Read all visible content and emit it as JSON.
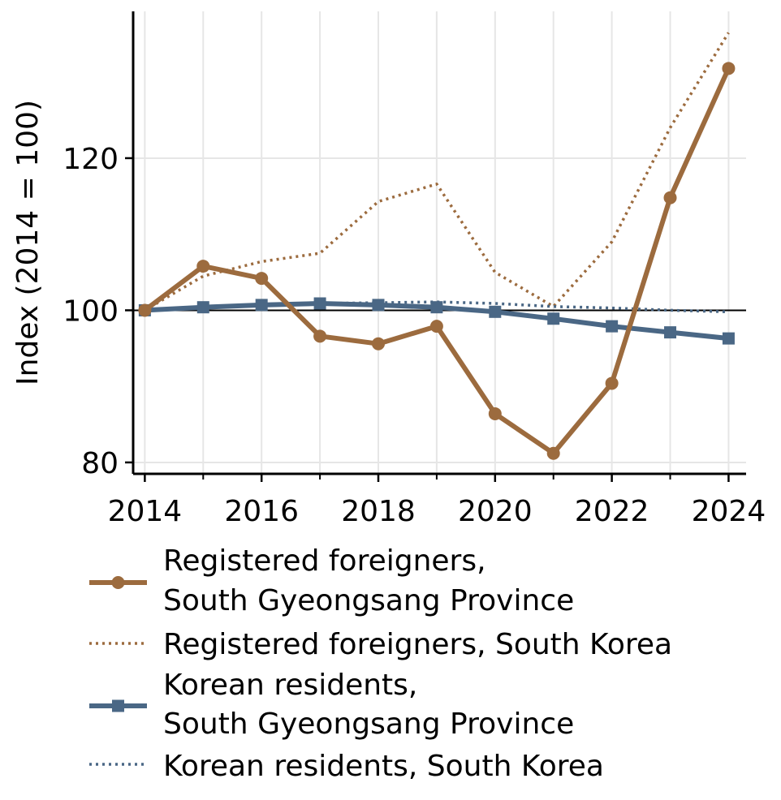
{
  "chart_data": {
    "type": "line",
    "title": "",
    "xlabel": "",
    "ylabel": "Index (2014 = 100)",
    "x": [
      2014,
      2015,
      2016,
      2017,
      2018,
      2019,
      2020,
      2021,
      2022,
      2023,
      2024
    ],
    "xlim": [
      2013.8,
      2024.3
    ],
    "ylim": [
      78.5,
      139.3
    ],
    "x_ticks": [
      2014,
      2016,
      2018,
      2020,
      2022,
      2024
    ],
    "x_minor_ticks": [
      2015,
      2017,
      2019,
      2021,
      2023
    ],
    "y_ticks": [
      80,
      100,
      120
    ],
    "reference_line": 100,
    "grid": true,
    "legend_position": "below",
    "series": [
      {
        "name": "Registered foreigners,\nSouth Gyeongsang Province",
        "values": [
          100,
          105.8,
          104.2,
          96.6,
          95.6,
          97.9,
          86.4,
          81.2,
          90.4,
          114.8,
          131.8
        ],
        "color": "#9c6b3e",
        "style": "solid",
        "marker": "circle"
      },
      {
        "name": "Registered foreigners, South Korea",
        "values": [
          100,
          104.5,
          106.4,
          107.5,
          114.3,
          116.6,
          105.0,
          100.5,
          109.0,
          124.0,
          136.5
        ],
        "color": "#9c6b3e",
        "style": "dotted",
        "marker": "none"
      },
      {
        "name": "Korean residents,\nSouth Gyeongsang Province",
        "values": [
          100,
          100.4,
          100.7,
          100.9,
          100.7,
          100.4,
          99.8,
          98.9,
          97.9,
          97.1,
          96.3
        ],
        "color": "#4a6785",
        "style": "solid",
        "marker": "square"
      },
      {
        "name": "Korean residents, South Korea",
        "values": [
          100,
          100.4,
          100.6,
          100.9,
          101.0,
          101.1,
          100.9,
          100.5,
          100.3,
          100.0,
          99.8
        ],
        "color": "#4a6785",
        "style": "dotted",
        "marker": "none"
      }
    ]
  }
}
